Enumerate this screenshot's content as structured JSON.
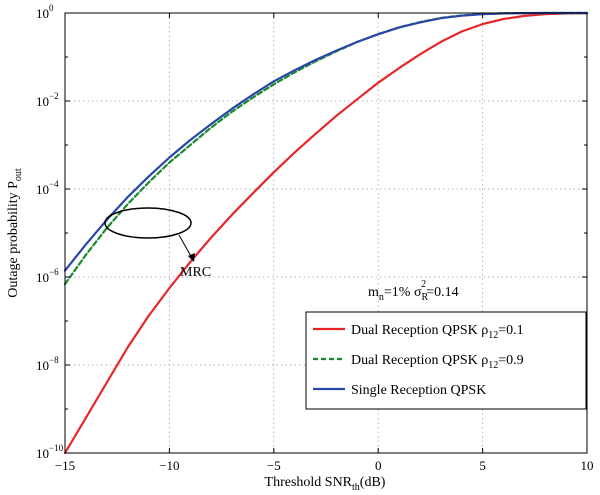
{
  "chart_data": {
    "type": "line",
    "xlabel": {
      "main": "Threshold SNR",
      "sub": "th",
      "tail": "(dB)"
    },
    "ylabel": {
      "main": "Outage probability P",
      "sub": "out"
    },
    "xlim": [
      -15,
      10
    ],
    "ylim": [
      1e-10,
      1
    ],
    "yscale": "log",
    "grid": true,
    "xticks": [
      -15,
      -10,
      -5,
      0,
      5,
      10
    ],
    "xtick_labels": [
      "−15",
      "−10",
      "−5",
      "0",
      "5",
      "10"
    ],
    "yticks": [
      {
        "value": 1e-10,
        "base": "10",
        "exp": "−10"
      },
      {
        "value": 1e-08,
        "base": "10",
        "exp": "−8"
      },
      {
        "value": 1e-06,
        "base": "10",
        "exp": "−6"
      },
      {
        "value": 0.0001,
        "base": "10",
        "exp": "−4"
      },
      {
        "value": 0.01,
        "base": "10",
        "exp": "−2"
      },
      {
        "value": 1,
        "base": "10",
        "exp": "0"
      }
    ],
    "legend_position": "lower-right",
    "series": [
      {
        "name": {
          "main": "Dual Reception QPSK ρ",
          "sub": "12",
          "tail": "=0.1"
        },
        "color": "#e8262a",
        "dash": "solid",
        "x": [
          -15,
          -14,
          -13,
          -12,
          -11,
          -10,
          -9,
          -8,
          -7,
          -6,
          -5,
          -4,
          -3,
          -2,
          -1,
          0,
          1,
          2,
          3,
          4,
          5,
          6,
          7,
          8,
          9,
          10
        ],
        "y": [
          1e-10,
          6.3e-10,
          4e-09,
          2.5e-08,
          1.3e-07,
          5.6e-07,
          2.2e-06,
          7.9e-06,
          2.6e-05,
          8e-05,
          0.00024,
          0.00068,
          0.0018,
          0.0046,
          0.011,
          0.026,
          0.056,
          0.115,
          0.22,
          0.38,
          0.56,
          0.73,
          0.86,
          0.94,
          0.98,
          0.995
        ]
      },
      {
        "name": {
          "main": "Dual Reception QPSK ρ",
          "sub": "12",
          "tail": "=0.9"
        },
        "color": "#1a8a2e",
        "dash": "dashed",
        "x": [
          -15,
          -14,
          -13,
          -12,
          -11,
          -10,
          -9,
          -8,
          -7,
          -6,
          -5,
          -4,
          -3,
          -2,
          -1,
          0,
          1,
          2,
          3,
          4,
          5,
          6,
          7,
          8,
          9,
          10
        ],
        "y": [
          6.9e-07,
          3.2e-06,
          1.3e-05,
          4.5e-05,
          0.00014,
          0.0004,
          0.001,
          0.0025,
          0.0057,
          0.012,
          0.024,
          0.045,
          0.08,
          0.135,
          0.22,
          0.33,
          0.47,
          0.62,
          0.77,
          0.88,
          0.95,
          0.985,
          0.996,
          0.999,
          1.0,
          1.0
        ]
      },
      {
        "name": {
          "main": "Single Reception QPSK",
          "sub": "",
          "tail": ""
        },
        "color": "#2a46a8",
        "dash": "solid",
        "x": [
          -15,
          -14,
          -13,
          -12,
          -11,
          -10,
          -9,
          -8,
          -7,
          -6,
          -5,
          -4,
          -3,
          -2,
          -1,
          0,
          1,
          2,
          3,
          4,
          5,
          6,
          7,
          8,
          9,
          10
        ],
        "y": [
          1.4e-06,
          5.5e-06,
          2e-05,
          6.5e-05,
          0.00019,
          0.00052,
          0.0013,
          0.003,
          0.0067,
          0.014,
          0.028,
          0.05,
          0.086,
          0.14,
          0.22,
          0.33,
          0.47,
          0.61,
          0.76,
          0.87,
          0.94,
          0.98,
          0.995,
          0.999,
          1.0,
          1.0
        ]
      }
    ],
    "annotations": [
      {
        "id": "mrc",
        "text": "MRC"
      },
      {
        "id": "params",
        "segments": [
          {
            "t": "m"
          },
          {
            "t": "n",
            "sub": true
          },
          {
            "t": "=1%   σ"
          },
          {
            "t": "R",
            "sub": true,
            "sup": "2"
          },
          {
            "t": "=0.14"
          }
        ]
      }
    ]
  }
}
